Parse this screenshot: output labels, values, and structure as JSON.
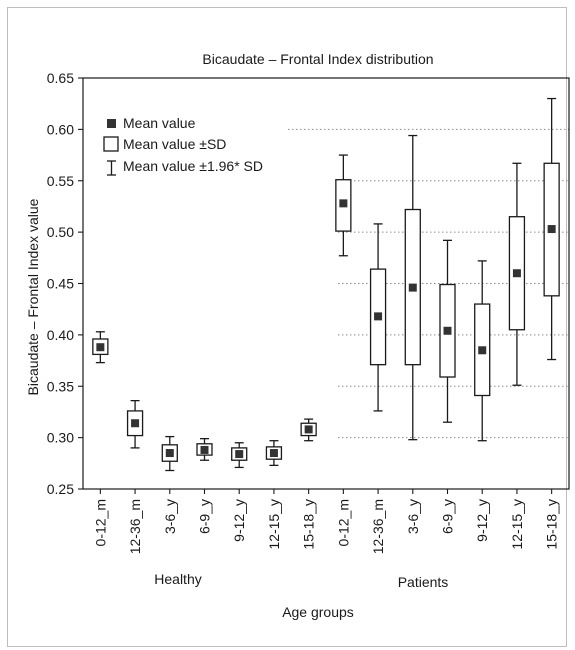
{
  "chart_data": {
    "type": "box",
    "title": "Bicaudate – Frontal Index distribution",
    "xlabel": "Age groups",
    "ylabel": "Bicaudate – Frontal Index value",
    "ylim": [
      0.25,
      0.65
    ],
    "yticks": [
      "0.25",
      "0.30",
      "0.35",
      "0.40",
      "0.45",
      "0.50",
      "0.55",
      "0.60",
      "0.65"
    ],
    "grid": "dotted horizontal lines (patients side and upper area)",
    "legend_position": "top-left",
    "legend": {
      "mean": "Mean value",
      "sd": "Mean value ±SD",
      "ci": "Mean value ±1.96* SD"
    },
    "group_labels": {
      "healthy": "Healthy",
      "patients": "Patients"
    },
    "categories": [
      {
        "label": "0-12_m",
        "group": "Healthy",
        "mean": 0.388,
        "sd_low": 0.381,
        "sd_high": 0.396,
        "ci_low": 0.373,
        "ci_high": 0.403
      },
      {
        "label": "12-36_m",
        "group": "Healthy",
        "mean": 0.314,
        "sd_low": 0.302,
        "sd_high": 0.326,
        "ci_low": 0.29,
        "ci_high": 0.336
      },
      {
        "label": "3-6_y",
        "group": "Healthy",
        "mean": 0.285,
        "sd_low": 0.277,
        "sd_high": 0.293,
        "ci_low": 0.268,
        "ci_high": 0.301
      },
      {
        "label": "6-9_y",
        "group": "Healthy",
        "mean": 0.288,
        "sd_low": 0.283,
        "sd_high": 0.294,
        "ci_low": 0.278,
        "ci_high": 0.299
      },
      {
        "label": "9-12_y",
        "group": "Healthy",
        "mean": 0.284,
        "sd_low": 0.278,
        "sd_high": 0.29,
        "ci_low": 0.271,
        "ci_high": 0.295
      },
      {
        "label": "12-15_y",
        "group": "Healthy",
        "mean": 0.285,
        "sd_low": 0.279,
        "sd_high": 0.291,
        "ci_low": 0.273,
        "ci_high": 0.297
      },
      {
        "label": "15-18_y",
        "group": "Healthy",
        "mean": 0.308,
        "sd_low": 0.302,
        "sd_high": 0.314,
        "ci_low": 0.297,
        "ci_high": 0.318
      },
      {
        "label": "0-12_m",
        "group": "Patients",
        "mean": 0.528,
        "sd_low": 0.501,
        "sd_high": 0.551,
        "ci_low": 0.477,
        "ci_high": 0.575
      },
      {
        "label": "12-36_m",
        "group": "Patients",
        "mean": 0.418,
        "sd_low": 0.371,
        "sd_high": 0.464,
        "ci_low": 0.326,
        "ci_high": 0.508
      },
      {
        "label": "3-6_y",
        "group": "Patients",
        "mean": 0.446,
        "sd_low": 0.371,
        "sd_high": 0.522,
        "ci_low": 0.298,
        "ci_high": 0.594
      },
      {
        "label": "6-9_y",
        "group": "Patients",
        "mean": 0.404,
        "sd_low": 0.359,
        "sd_high": 0.449,
        "ci_low": 0.315,
        "ci_high": 0.492
      },
      {
        "label": "9-12_y",
        "group": "Patients",
        "mean": 0.385,
        "sd_low": 0.341,
        "sd_high": 0.43,
        "ci_low": 0.297,
        "ci_high": 0.472
      },
      {
        "label": "12-15_y",
        "group": "Patients",
        "mean": 0.46,
        "sd_low": 0.405,
        "sd_high": 0.515,
        "ci_low": 0.351,
        "ci_high": 0.567
      },
      {
        "label": "15-18_y",
        "group": "Patients",
        "mean": 0.503,
        "sd_low": 0.438,
        "sd_high": 0.567,
        "ci_low": 0.376,
        "ci_high": 0.63
      }
    ]
  }
}
